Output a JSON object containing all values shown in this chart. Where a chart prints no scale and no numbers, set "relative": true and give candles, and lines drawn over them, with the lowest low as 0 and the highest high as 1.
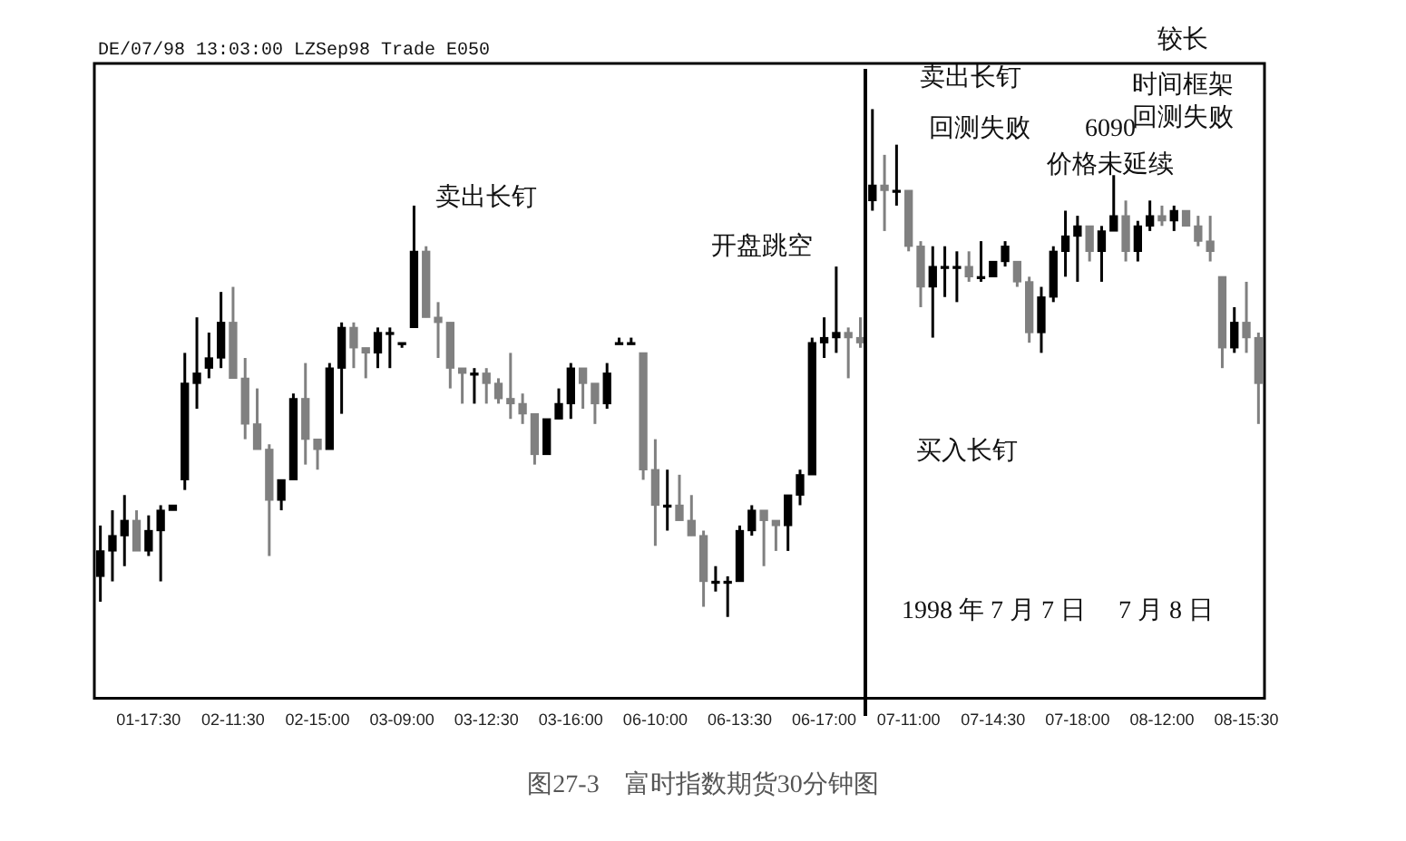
{
  "chart_data": {
    "type": "candlestick",
    "title": "图27-3　富时指数期货30分钟图",
    "relative": true,
    "tick_labels": "x",
    "categories": [
      null,
      null,
      null,
      null,
      "01-17:30",
      null,
      null,
      null,
      null,
      null,
      null,
      "02-11:30",
      null,
      null,
      null,
      null,
      null,
      null,
      "02-15:00",
      null,
      null,
      null,
      null,
      null,
      null,
      "03-09:00",
      null,
      null,
      null,
      null,
      null,
      null,
      "03-12:30",
      null,
      null,
      null,
      null,
      null,
      null,
      "03-16:00",
      null,
      null,
      null,
      null,
      null,
      null,
      "06-10:00",
      null,
      null,
      null,
      null,
      null,
      null,
      "06-13:30",
      null,
      null,
      null,
      null,
      null,
      null,
      "06-17:00",
      null,
      null,
      null,
      null,
      null,
      null,
      "07-11:00",
      null,
      null,
      null,
      null,
      null,
      null,
      "07-14:30",
      null,
      null,
      null,
      null,
      null,
      null,
      "07-18:00",
      null,
      null,
      null,
      null,
      null,
      null,
      "08-12:00",
      null,
      null,
      null,
      null,
      null,
      null,
      "08-15:30",
      null
    ],
    "ohlc": [
      [
        0.08,
        0.18,
        0.03,
        0.13
      ],
      [
        0.13,
        0.21,
        0.07,
        0.16
      ],
      [
        0.16,
        0.24,
        0.1,
        0.19
      ],
      [
        0.19,
        0.21,
        0.13,
        0.13
      ],
      [
        0.13,
        0.2,
        0.12,
        0.17
      ],
      [
        0.17,
        0.22,
        0.07,
        0.21
      ],
      [
        0.21,
        0.22,
        0.21,
        0.22
      ],
      [
        0.27,
        0.52,
        0.25,
        0.46
      ],
      [
        0.46,
        0.59,
        0.41,
        0.48
      ],
      [
        0.49,
        0.56,
        0.47,
        0.51
      ],
      [
        0.51,
        0.64,
        0.49,
        0.58
      ],
      [
        0.58,
        0.65,
        0.47,
        0.47
      ],
      [
        0.47,
        0.51,
        0.35,
        0.38
      ],
      [
        0.38,
        0.45,
        0.33,
        0.33
      ],
      [
        0.33,
        0.34,
        0.12,
        0.23
      ],
      [
        0.23,
        0.27,
        0.21,
        0.27
      ],
      [
        0.27,
        0.44,
        0.27,
        0.43
      ],
      [
        0.43,
        0.5,
        0.3,
        0.35
      ],
      [
        0.35,
        0.35,
        0.29,
        0.33
      ],
      [
        0.33,
        0.5,
        0.33,
        0.49
      ],
      [
        0.49,
        0.58,
        0.4,
        0.57
      ],
      [
        0.57,
        0.58,
        0.49,
        0.53
      ],
      [
        0.53,
        0.53,
        0.47,
        0.52
      ],
      [
        0.52,
        0.57,
        0.49,
        0.56
      ],
      [
        0.56,
        0.57,
        0.49,
        0.56
      ],
      [
        0.54,
        0.54,
        0.53,
        0.54
      ],
      [
        0.57,
        0.81,
        0.57,
        0.72
      ],
      [
        0.72,
        0.73,
        0.59,
        0.59
      ],
      [
        0.59,
        0.62,
        0.51,
        0.58
      ],
      [
        0.58,
        0.58,
        0.45,
        0.49
      ],
      [
        0.49,
        0.49,
        0.42,
        0.48
      ],
      [
        0.48,
        0.49,
        0.42,
        0.48
      ],
      [
        0.48,
        0.49,
        0.42,
        0.46
      ],
      [
        0.46,
        0.47,
        0.42,
        0.43
      ],
      [
        0.43,
        0.52,
        0.39,
        0.42
      ],
      [
        0.42,
        0.44,
        0.38,
        0.4
      ],
      [
        0.4,
        0.4,
        0.3,
        0.32
      ],
      [
        0.32,
        0.39,
        0.32,
        0.39
      ],
      [
        0.39,
        0.45,
        0.39,
        0.42
      ],
      [
        0.42,
        0.5,
        0.39,
        0.49
      ],
      [
        0.49,
        0.49,
        0.41,
        0.46
      ],
      [
        0.46,
        0.46,
        0.38,
        0.42
      ],
      [
        0.42,
        0.5,
        0.41,
        0.48
      ],
      [
        0.54,
        0.55,
        0.54,
        0.54
      ],
      [
        0.54,
        0.55,
        0.54,
        0.54
      ],
      [
        0.52,
        0.52,
        0.27,
        0.29
      ],
      [
        0.29,
        0.35,
        0.14,
        0.22
      ],
      [
        0.22,
        0.29,
        0.17,
        0.22
      ],
      [
        0.22,
        0.28,
        0.19,
        0.19
      ],
      [
        0.19,
        0.24,
        0.16,
        0.16
      ],
      [
        0.16,
        0.17,
        0.02,
        0.07
      ],
      [
        0.07,
        0.1,
        0.05,
        0.07
      ],
      [
        0.07,
        0.08,
        0,
        0.07
      ],
      [
        0.07,
        0.18,
        0.07,
        0.17
      ],
      [
        0.17,
        0.22,
        0.16,
        0.21
      ],
      [
        0.21,
        0.21,
        0.1,
        0.19
      ],
      [
        0.19,
        0.19,
        0.13,
        0.18
      ],
      [
        0.18,
        0.24,
        0.13,
        0.24
      ],
      [
        0.24,
        0.29,
        0.22,
        0.28
      ],
      [
        0.28,
        0.55,
        0.28,
        0.54
      ],
      [
        0.54,
        0.59,
        0.51,
        0.55
      ],
      [
        0.55,
        0.69,
        0.52,
        0.56
      ],
      [
        0.56,
        0.57,
        0.47,
        0.55
      ],
      [
        0.55,
        0.59,
        0.53,
        0.54
      ],
      [
        0.82,
        1,
        0.8,
        0.85
      ],
      [
        0.85,
        0.91,
        0.76,
        0.84
      ],
      [
        0.84,
        0.93,
        0.81,
        0.84
      ],
      [
        0.84,
        0.84,
        0.72,
        0.73
      ],
      [
        0.73,
        0.74,
        0.61,
        0.65
      ],
      [
        0.65,
        0.73,
        0.55,
        0.69
      ],
      [
        0.69,
        0.73,
        0.63,
        0.69
      ],
      [
        0.69,
        0.72,
        0.62,
        0.69
      ],
      [
        0.69,
        0.72,
        0.66,
        0.67
      ],
      [
        0.67,
        0.74,
        0.66,
        0.67
      ],
      [
        0.67,
        0.7,
        0.67,
        0.7
      ],
      [
        0.7,
        0.74,
        0.69,
        0.73
      ],
      [
        0.7,
        0.7,
        0.65,
        0.66
      ],
      [
        0.66,
        0.67,
        0.54,
        0.56
      ],
      [
        0.56,
        0.65,
        0.52,
        0.63
      ],
      [
        0.63,
        0.73,
        0.62,
        0.72
      ],
      [
        0.72,
        0.8,
        0.67,
        0.75
      ],
      [
        0.75,
        0.79,
        0.66,
        0.77
      ],
      [
        0.77,
        0.77,
        0.7,
        0.72
      ],
      [
        0.72,
        0.77,
        0.66,
        0.76
      ],
      [
        0.76,
        0.87,
        0.76,
        0.79
      ],
      [
        0.79,
        0.82,
        0.7,
        0.72
      ],
      [
        0.72,
        0.78,
        0.7,
        0.77
      ],
      [
        0.77,
        0.82,
        0.76,
        0.79
      ],
      [
        0.79,
        0.81,
        0.77,
        0.78
      ],
      [
        0.78,
        0.81,
        0.76,
        0.8
      ],
      [
        0.8,
        0.8,
        0.77,
        0.77
      ],
      [
        0.77,
        0.79,
        0.73,
        0.74
      ],
      [
        0.74,
        0.79,
        0.7,
        0.72
      ],
      [
        0.67,
        0.67,
        0.49,
        0.53
      ],
      [
        0.53,
        0.61,
        0.52,
        0.58
      ],
      [
        0.58,
        0.66,
        0.52,
        0.55
      ],
      [
        0.55,
        0.56,
        0.38,
        0.46
      ]
    ],
    "annotations": [
      "DE/07/98 13:03:00 LZSep98 Trade E050",
      "较长",
      "时间框架回测失败",
      "卖出长钉",
      "卖出长钉",
      "回测失败",
      "开盘跳空",
      "6090",
      "价格未延续",
      "买入长钉",
      "1998 年 7 月 7 日",
      "7 月 8 日"
    ]
  }
}
